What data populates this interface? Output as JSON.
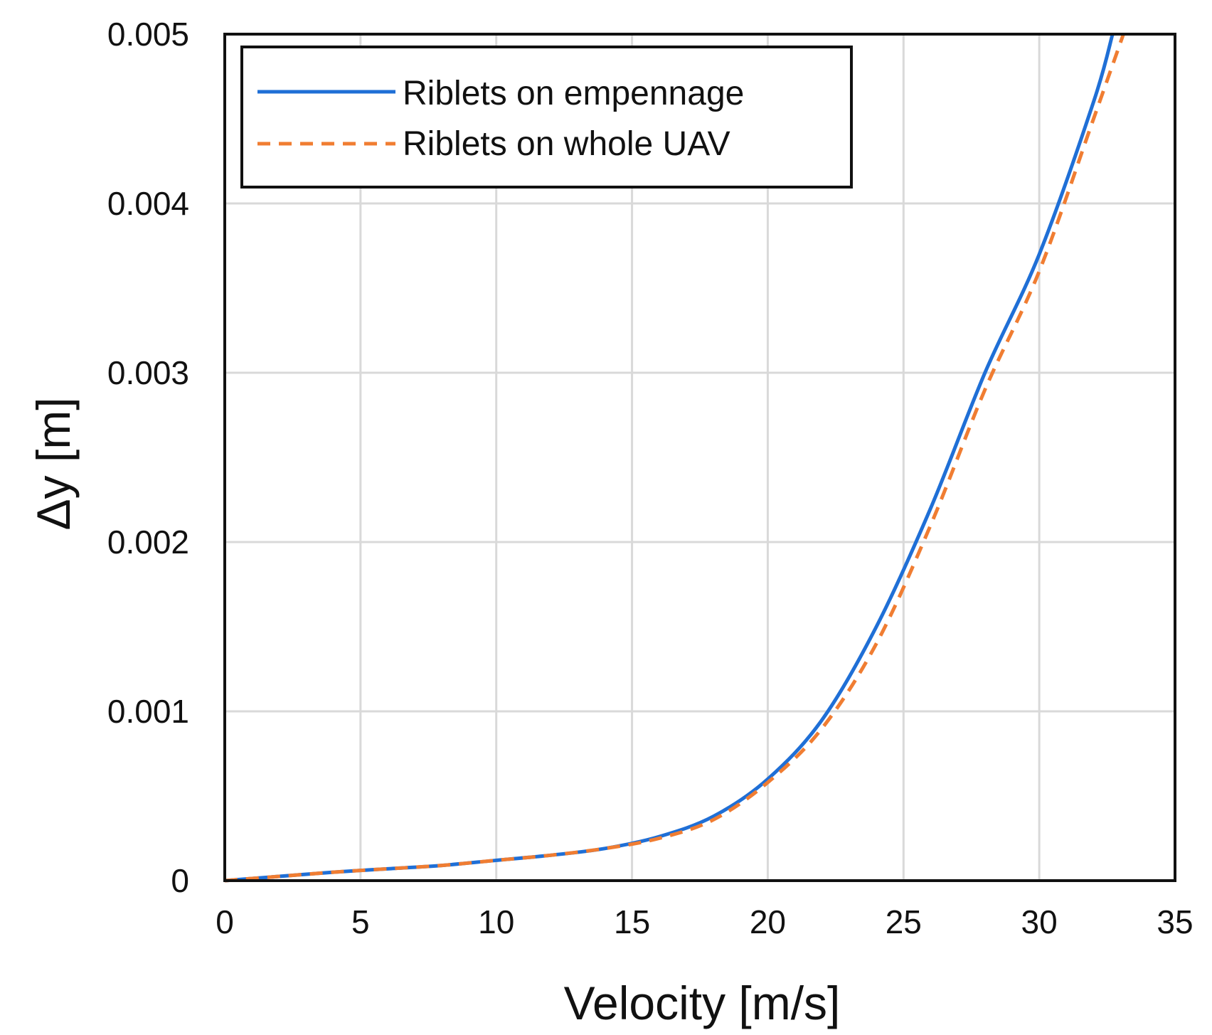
{
  "chart_data": {
    "type": "line",
    "title": "",
    "xlabel": "Velocity [m/s]",
    "ylabel": "Δy [m]",
    "xlim": [
      0,
      35
    ],
    "ylim": [
      0,
      0.005
    ],
    "xticks": [
      0,
      5,
      10,
      15,
      20,
      25,
      30,
      35
    ],
    "xtick_labels": [
      "0",
      "5",
      "10",
      "15",
      "20",
      "25",
      "30",
      "35"
    ],
    "yticks": [
      0,
      0.001,
      0.002,
      0.003,
      0.004,
      0.005
    ],
    "ytick_labels": [
      "0",
      "0.001",
      "0.002",
      "0.003",
      "0.004",
      "0.005"
    ],
    "grid": true,
    "legend_position": "top-left",
    "series": [
      {
        "name": "Riblets on empennage",
        "color": "#1f6fd6",
        "style": "solid",
        "x": [
          0,
          2,
          4,
          6,
          8,
          10,
          12,
          14,
          16,
          18,
          20,
          22,
          24,
          26,
          28,
          30,
          32,
          32.7
        ],
        "y": [
          0,
          2.5e-05,
          5e-05,
          7e-05,
          9e-05,
          0.00012,
          0.00015,
          0.00019,
          0.00026,
          0.00038,
          0.0006,
          0.00095,
          0.0015,
          0.0022,
          0.003,
          0.0037,
          0.0046,
          0.005
        ]
      },
      {
        "name": "Riblets on whole UAV",
        "color": "#f07d32",
        "style": "dashed",
        "x": [
          0,
          2,
          4,
          6,
          8,
          10,
          12,
          14,
          16,
          18,
          20,
          22,
          24,
          26,
          28,
          30,
          32,
          33.1
        ],
        "y": [
          0,
          2.5e-05,
          5e-05,
          7e-05,
          9e-05,
          0.00012,
          0.00015,
          0.00019,
          0.00025,
          0.00036,
          0.00058,
          0.0009,
          0.0014,
          0.0021,
          0.0029,
          0.0036,
          0.0045,
          0.005
        ]
      }
    ]
  }
}
